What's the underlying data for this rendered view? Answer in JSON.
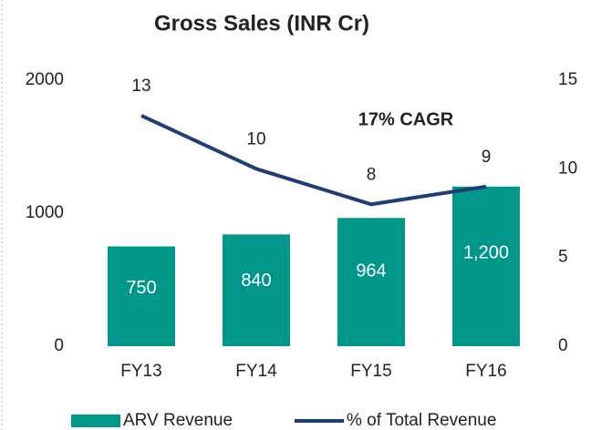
{
  "chart_data": {
    "type": "combo",
    "title": "Gross Sales (INR Cr)",
    "annotation": "17% CAGR",
    "categories": [
      "FY13",
      "FY14",
      "FY15",
      "FY16"
    ],
    "series": [
      {
        "name": "ARV Revenue",
        "type": "bar",
        "color": "#00968a",
        "values": [
          750,
          840,
          964,
          1200
        ],
        "value_labels": [
          "750",
          "840",
          "964",
          "1,200"
        ]
      },
      {
        "name": "% of Total Revenue",
        "type": "line",
        "axis": "y2",
        "color": "#1f3f73",
        "values": [
          13,
          10,
          8,
          9
        ]
      }
    ],
    "ylim": [
      0,
      2000
    ],
    "yticks": [
      0,
      1000,
      2000
    ],
    "y2lim": [
      0,
      15
    ],
    "y2ticks": [
      0,
      5,
      10,
      15
    ],
    "grid": false,
    "legend": "bottom"
  }
}
